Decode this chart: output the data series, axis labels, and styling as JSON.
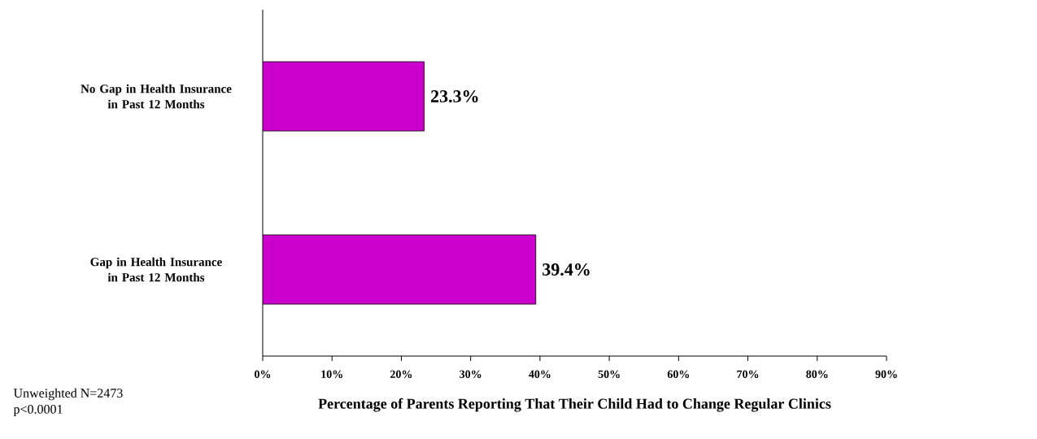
{
  "chart_data": {
    "type": "bar",
    "orientation": "horizontal",
    "categories": [
      "No Gap in Health Insurance in Past 12 Months",
      "Gap in Health Insurance in Past 12 Months"
    ],
    "values": [
      23.3,
      39.4
    ],
    "value_labels": [
      "23.3%",
      "39.4%"
    ],
    "color": "#cc00cc",
    "xlim": [
      0,
      90
    ],
    "xticks": [
      {
        "value": 0,
        "label": "0%"
      },
      {
        "value": 10,
        "label": "10%"
      },
      {
        "value": 20,
        "label": "20%"
      },
      {
        "value": 30,
        "label": "30%"
      },
      {
        "value": 40,
        "label": "40%"
      },
      {
        "value": 50,
        "label": "50%"
      },
      {
        "value": 60,
        "label": "60%"
      },
      {
        "value": 70,
        "label": "70%"
      },
      {
        "value": 80,
        "label": "80%"
      },
      {
        "value": 90,
        "label": "90%"
      }
    ],
    "xlabel": "Percentage of Parents Reporting That Their Child Had to Change Regular Clinics",
    "annotations": [
      "Unweighted N=2473",
      "p<0.0001"
    ]
  }
}
